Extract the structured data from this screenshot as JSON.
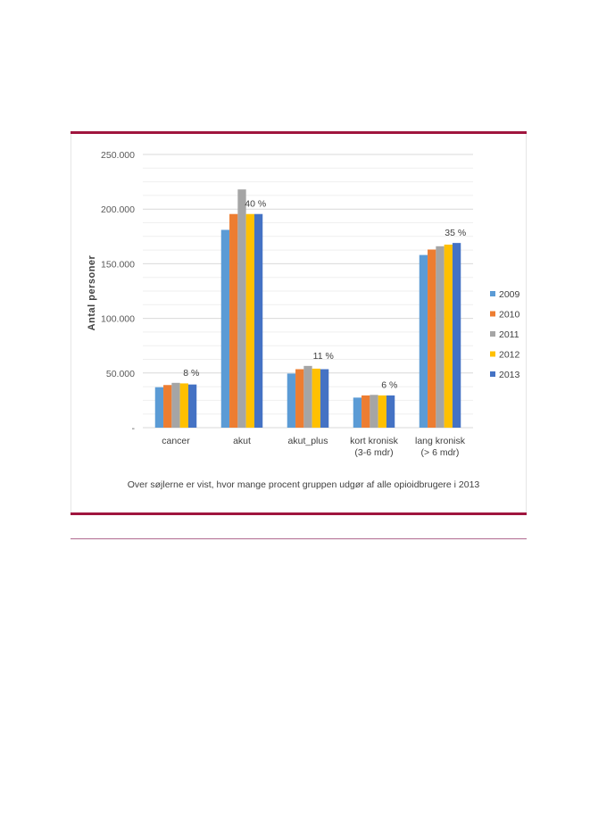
{
  "chart_data": {
    "type": "bar",
    "ylabel": "Antal personer",
    "ylim": [
      0,
      250000
    ],
    "yticks": [
      "-",
      "50.000",
      "100.000",
      "150.000",
      "200.000",
      "250.000"
    ],
    "grid": true,
    "legend_position": "right",
    "categories": [
      "cancer",
      "akut",
      "akut_plus",
      "kort kronisk (3-6 mdr)",
      "lang kronisk (> 6 mdr)"
    ],
    "category_lines": [
      [
        "cancer"
      ],
      [
        "akut"
      ],
      [
        "akut_plus"
      ],
      [
        "kort kronisk",
        "(3-6 mdr)"
      ],
      [
        "lang kronisk",
        "(> 6 mdr)"
      ]
    ],
    "series": [
      {
        "name": "2009",
        "color": "#5b9bd5",
        "values": [
          37000,
          181000,
          49500,
          27500,
          158000
        ]
      },
      {
        "name": "2010",
        "color": "#ed7d31",
        "values": [
          39000,
          195500,
          53500,
          29500,
          163000
        ]
      },
      {
        "name": "2011",
        "color": "#a5a5a5",
        "values": [
          41000,
          218000,
          56500,
          30000,
          166000
        ]
      },
      {
        "name": "2012",
        "color": "#ffc000",
        "values": [
          40500,
          195500,
          54000,
          29500,
          167500
        ]
      },
      {
        "name": "2013",
        "color": "#4472c4",
        "values": [
          39500,
          195500,
          53500,
          29500,
          169000
        ]
      }
    ],
    "annotations": [
      "8 %",
      "40 %",
      "11 %",
      "6 %",
      "35 %"
    ],
    "note": "Over søjlerne er vist, hvor mange procent gruppen udgør af alle opioidbrugere i 2013"
  }
}
